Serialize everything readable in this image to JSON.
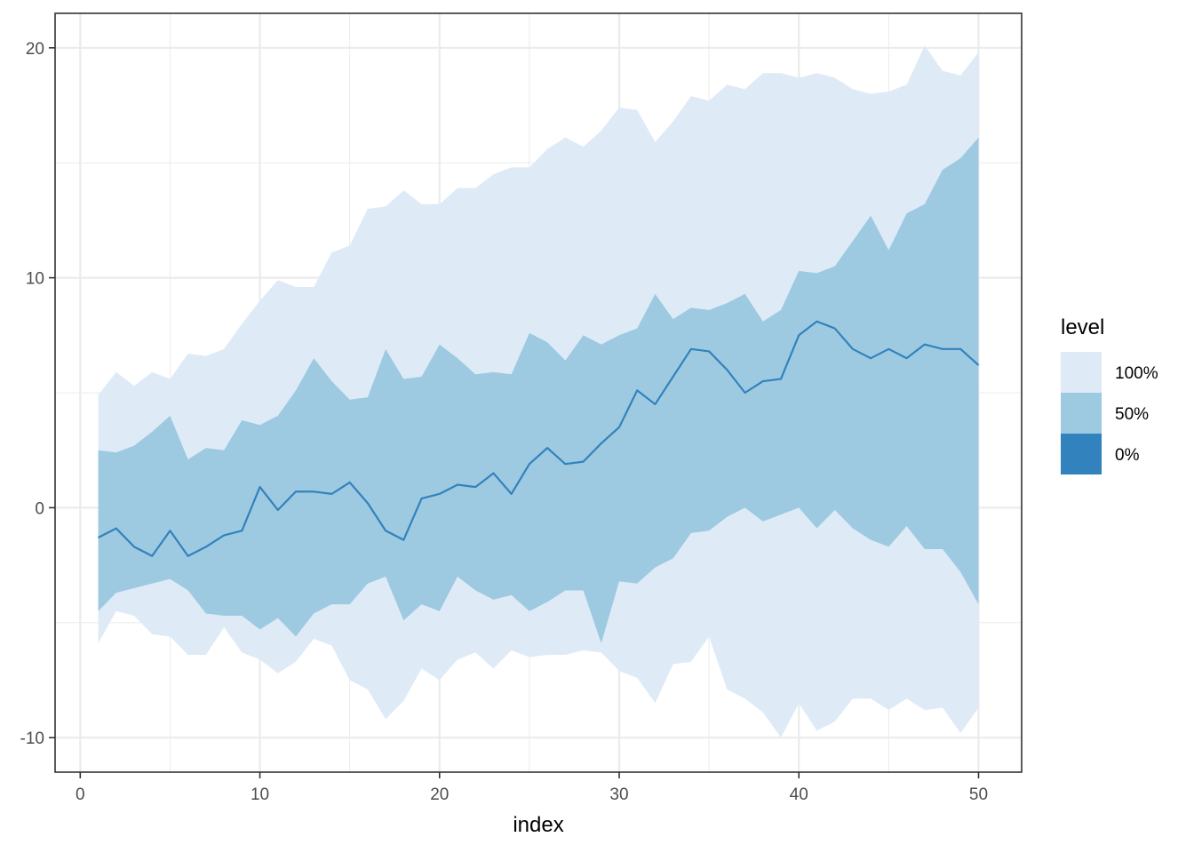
{
  "chart_data": {
    "type": "area",
    "title": "",
    "xlabel": "index",
    "ylabel": "",
    "xlim": [
      -1.4,
      52.4
    ],
    "ylim": [
      -11.5,
      21.5
    ],
    "x_ticks": [
      0,
      10,
      20,
      30,
      40,
      50
    ],
    "y_ticks": [
      -10,
      0,
      10,
      20
    ],
    "grid": true,
    "legend": {
      "title": "level",
      "position": "right",
      "entries": [
        {
          "label": "100%",
          "color": "#deebf7"
        },
        {
          "label": "50%",
          "color": "#9ecae1"
        },
        {
          "label": "0%",
          "color": "#3182bd"
        }
      ]
    },
    "x": [
      1,
      2,
      3,
      4,
      5,
      6,
      7,
      8,
      9,
      10,
      11,
      12,
      13,
      14,
      15,
      16,
      17,
      18,
      19,
      20,
      21,
      22,
      23,
      24,
      25,
      26,
      27,
      28,
      29,
      30,
      31,
      32,
      33,
      34,
      35,
      36,
      37,
      38,
      39,
      40,
      41,
      42,
      43,
      44,
      45,
      46,
      47,
      48,
      49,
      50
    ],
    "series": [
      {
        "name": "100%",
        "kind": "ribbon",
        "color": "#deebf7",
        "upper": [
          4.9,
          5.9,
          5.3,
          5.9,
          5.6,
          6.7,
          6.6,
          6.9,
          8.0,
          9.0,
          9.9,
          9.6,
          9.6,
          11.1,
          11.4,
          13.0,
          13.1,
          13.8,
          13.2,
          13.2,
          13.9,
          13.9,
          14.5,
          14.8,
          14.8,
          15.6,
          16.1,
          15.7,
          16.4,
          17.4,
          17.3,
          15.9,
          16.8,
          17.9,
          17.7,
          18.4,
          18.2,
          18.9,
          18.9,
          18.7,
          18.9,
          18.7,
          18.2,
          18.0,
          18.1,
          18.4,
          20.1,
          19.0,
          18.8,
          19.8
        ],
        "lower": [
          -5.9,
          -4.5,
          -4.7,
          -5.5,
          -5.6,
          -6.4,
          -6.4,
          -5.2,
          -6.3,
          -6.6,
          -7.2,
          -6.7,
          -5.7,
          -6.0,
          -7.5,
          -7.9,
          -9.2,
          -8.4,
          -7.0,
          -7.5,
          -6.6,
          -6.3,
          -7.0,
          -6.2,
          -6.5,
          -6.4,
          -6.4,
          -6.2,
          -6.3,
          -7.1,
          -7.4,
          -8.5,
          -6.8,
          -6.7,
          -5.6,
          -7.9,
          -8.3,
          -8.9,
          -10.0,
          -8.5,
          -9.7,
          -9.3,
          -8.3,
          -8.3,
          -8.8,
          -8.3,
          -8.8,
          -8.7,
          -9.8,
          -8.7
        ]
      },
      {
        "name": "50%",
        "kind": "ribbon",
        "color": "#9ecae1",
        "upper": [
          2.5,
          2.4,
          2.7,
          3.3,
          4.0,
          2.1,
          2.6,
          2.5,
          3.8,
          3.6,
          4.0,
          5.1,
          6.5,
          5.5,
          4.7,
          4.8,
          6.9,
          5.6,
          5.7,
          7.1,
          6.5,
          5.8,
          5.9,
          5.8,
          7.6,
          7.2,
          6.4,
          7.5,
          7.1,
          7.5,
          7.8,
          9.3,
          8.2,
          8.7,
          8.6,
          8.9,
          9.3,
          8.1,
          8.6,
          10.3,
          10.2,
          10.5,
          11.6,
          12.7,
          11.2,
          12.8,
          13.2,
          14.7,
          15.2,
          16.1
        ],
        "lower": [
          -4.5,
          -3.7,
          -3.5,
          -3.3,
          -3.1,
          -3.6,
          -4.6,
          -4.7,
          -4.7,
          -5.3,
          -4.8,
          -5.6,
          -4.6,
          -4.2,
          -4.2,
          -3.3,
          -3.0,
          -4.9,
          -4.2,
          -4.5,
          -3.0,
          -3.6,
          -4.0,
          -3.8,
          -4.5,
          -4.1,
          -3.6,
          -3.6,
          -5.9,
          -3.2,
          -3.3,
          -2.6,
          -2.2,
          -1.1,
          -1.0,
          -0.4,
          0.0,
          -0.6,
          -0.3,
          0.0,
          -0.9,
          -0.1,
          -0.9,
          -1.4,
          -1.7,
          -0.8,
          -1.8,
          -1.8,
          -2.8,
          -4.2
        ]
      },
      {
        "name": "0%",
        "kind": "line",
        "color": "#3182bd",
        "values": [
          -1.3,
          -0.9,
          -1.7,
          -2.1,
          -1.0,
          -2.1,
          -1.7,
          -1.2,
          -1.0,
          0.9,
          -0.1,
          0.7,
          0.7,
          0.6,
          1.1,
          0.2,
          -1.0,
          -1.4,
          0.4,
          0.6,
          1.0,
          0.9,
          1.5,
          0.6,
          1.9,
          2.6,
          1.9,
          2.0,
          2.8,
          3.5,
          5.1,
          4.5,
          5.7,
          6.9,
          6.8,
          6.0,
          5.0,
          5.5,
          5.6,
          7.5,
          8.1,
          7.8,
          6.9,
          6.5,
          6.9,
          6.5,
          7.1,
          6.9,
          6.9,
          6.2
        ]
      }
    ]
  }
}
